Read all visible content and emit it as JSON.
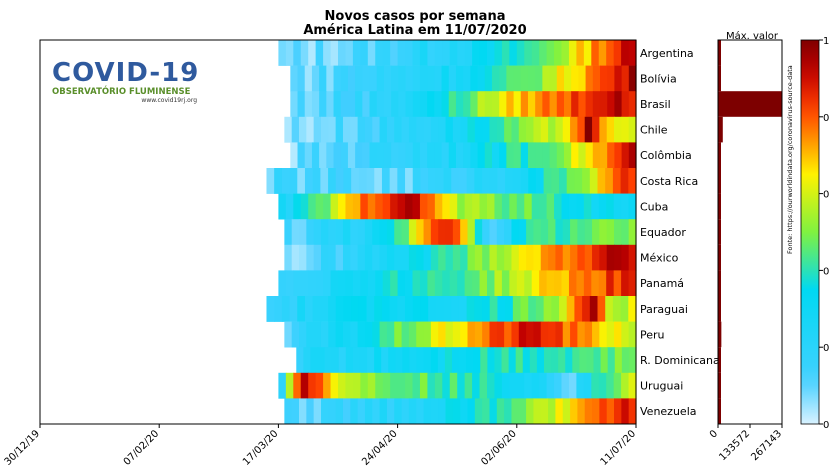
{
  "chart_data": {
    "type": "heatmap",
    "title": "Novos casos por semana",
    "subtitle": "América Latina em 11/07/2020",
    "x_tick_labels": [
      "30/12/19",
      "07/02/20",
      "17/03/20",
      "24/04/20",
      "02/06/20",
      "11/07/20"
    ],
    "countries": [
      "Argentina",
      "Bolívia",
      "Brasil",
      "Chile",
      "Colômbia",
      "Costa Rica",
      "Cuba",
      "Equador",
      "México",
      "Panamá",
      "Paraguai",
      "Peru",
      "R. Dominicana",
      "Uruguai",
      "Venezuela"
    ],
    "value_scale": "normalized per country (0 = min, 1 = max weekly new cases)",
    "heat_rows": [
      {
        "country": "Argentina",
        "start": 0.4,
        "anchors": [
          [
            0,
            0.05
          ],
          [
            0.25,
            0.12
          ],
          [
            0.55,
            0.28
          ],
          [
            0.72,
            0.42
          ],
          [
            0.82,
            0.6
          ],
          [
            0.9,
            0.78
          ],
          [
            1,
            0.92
          ]
        ]
      },
      {
        "country": "Bolívia",
        "start": 0.42,
        "anchors": [
          [
            0,
            0.08
          ],
          [
            0.3,
            0.18
          ],
          [
            0.55,
            0.32
          ],
          [
            0.68,
            0.45
          ],
          [
            0.78,
            0.62
          ],
          [
            0.88,
            0.78
          ],
          [
            1,
            0.95
          ]
        ]
      },
      {
        "country": "Brasil",
        "start": 0.42,
        "anchors": [
          [
            0,
            0.08
          ],
          [
            0.25,
            0.18
          ],
          [
            0.45,
            0.35
          ],
          [
            0.58,
            0.58
          ],
          [
            0.68,
            0.72
          ],
          [
            0.8,
            0.8
          ],
          [
            0.9,
            0.92
          ],
          [
            1,
            0.88
          ]
        ]
      },
      {
        "country": "Chile",
        "start": 0.41,
        "anchors": [
          [
            0,
            0.05
          ],
          [
            0.25,
            0.15
          ],
          [
            0.45,
            0.25
          ],
          [
            0.62,
            0.4
          ],
          [
            0.78,
            0.6
          ],
          [
            0.84,
            0.82
          ],
          [
            0.86,
            0.98
          ],
          [
            0.9,
            0.7
          ],
          [
            1,
            0.58
          ]
        ]
      },
      {
        "country": "Colômbia",
        "start": 0.42,
        "anchors": [
          [
            0,
            0.06
          ],
          [
            0.3,
            0.18
          ],
          [
            0.55,
            0.3
          ],
          [
            0.72,
            0.45
          ],
          [
            0.86,
            0.65
          ],
          [
            1,
            0.92
          ]
        ]
      },
      {
        "country": "Costa Rica",
        "start": 0.38,
        "anchors": [
          [
            0,
            0.12
          ],
          [
            0.35,
            0.1
          ],
          [
            0.55,
            0.18
          ],
          [
            0.72,
            0.3
          ],
          [
            0.86,
            0.55
          ],
          [
            1,
            0.88
          ]
        ]
      },
      {
        "country": "Cuba",
        "start": 0.4,
        "anchors": [
          [
            0,
            0.2
          ],
          [
            0.12,
            0.45
          ],
          [
            0.25,
            0.8
          ],
          [
            0.35,
            0.95
          ],
          [
            0.42,
            0.8
          ],
          [
            0.5,
            0.55
          ],
          [
            0.7,
            0.45
          ],
          [
            0.85,
            0.35
          ],
          [
            1,
            0.3
          ]
        ]
      },
      {
        "country": "Equador",
        "start": 0.41,
        "anchors": [
          [
            0,
            0.1
          ],
          [
            0.3,
            0.3
          ],
          [
            0.45,
            0.9
          ],
          [
            0.52,
            0.7
          ],
          [
            0.58,
            0.1
          ],
          [
            0.7,
            0.4
          ],
          [
            0.85,
            0.45
          ],
          [
            1,
            0.48
          ]
        ]
      },
      {
        "country": "México",
        "start": 0.41,
        "anchors": [
          [
            0,
            0.05
          ],
          [
            0.3,
            0.25
          ],
          [
            0.52,
            0.45
          ],
          [
            0.65,
            0.62
          ],
          [
            0.8,
            0.78
          ],
          [
            0.92,
            0.9
          ],
          [
            1,
            0.93
          ]
        ]
      },
      {
        "country": "Panamá",
        "start": 0.4,
        "anchors": [
          [
            0,
            0.15
          ],
          [
            0.3,
            0.35
          ],
          [
            0.5,
            0.42
          ],
          [
            0.65,
            0.55
          ],
          [
            0.8,
            0.72
          ],
          [
            1,
            0.88
          ]
        ]
      },
      {
        "country": "Paraguai",
        "start": 0.38,
        "anchors": [
          [
            0,
            0.15
          ],
          [
            0.3,
            0.35
          ],
          [
            0.5,
            0.28
          ],
          [
            0.65,
            0.4
          ],
          [
            0.78,
            0.55
          ],
          [
            0.88,
            0.95
          ],
          [
            0.94,
            0.55
          ],
          [
            1,
            0.62
          ]
        ]
      },
      {
        "country": "Peru",
        "start": 0.41,
        "anchors": [
          [
            0,
            0.1
          ],
          [
            0.2,
            0.3
          ],
          [
            0.4,
            0.55
          ],
          [
            0.6,
            0.8
          ],
          [
            0.72,
            0.9
          ],
          [
            0.85,
            0.72
          ],
          [
            1,
            0.6
          ]
        ]
      },
      {
        "country": "R. Dominicana",
        "start": 0.43,
        "anchors": [
          [
            0,
            0.2
          ],
          [
            0.3,
            0.3
          ],
          [
            0.6,
            0.4
          ],
          [
            0.8,
            0.42
          ],
          [
            1,
            0.48
          ]
        ]
      },
      {
        "country": "Uruguai",
        "start": 0.4,
        "anchors": [
          [
            0,
            0.1
          ],
          [
            0.06,
            0.95
          ],
          [
            0.2,
            0.55
          ],
          [
            0.35,
            0.48
          ],
          [
            0.55,
            0.38
          ],
          [
            0.7,
            0.3
          ],
          [
            0.82,
            0.12
          ],
          [
            0.9,
            0.4
          ],
          [
            1,
            0.6
          ]
        ]
      },
      {
        "country": "Venezuela",
        "start": 0.41,
        "anchors": [
          [
            0,
            0.08
          ],
          [
            0.3,
            0.2
          ],
          [
            0.5,
            0.32
          ],
          [
            0.7,
            0.5
          ],
          [
            0.86,
            0.72
          ],
          [
            1,
            0.9
          ]
        ]
      }
    ],
    "max_values": {
      "label": "Máx. valor",
      "ticks": [
        0,
        133572,
        267143
      ],
      "values": [
        7000,
        1500,
        267143,
        20000,
        7000,
        1500,
        500,
        3000,
        7500,
        1500,
        300,
        14000,
        2000,
        300,
        1500
      ],
      "bar_color": "#7d0000"
    },
    "colorbar": {
      "colormap": "jet",
      "ticks": [
        0,
        0.2,
        0.4,
        0.6,
        0.8,
        1
      ],
      "tick_labels": [
        "0",
        "0.",
        "0.",
        "0.",
        "0.",
        "1"
      ]
    }
  },
  "source_note": "Fonte: https://ourworldindata.org/coronavirus-source-data",
  "logo": {
    "title": "COVID-19",
    "subtitle": "OBSERVATÓRIO FLUMINENSE",
    "url": "www.covid19rj.org"
  }
}
